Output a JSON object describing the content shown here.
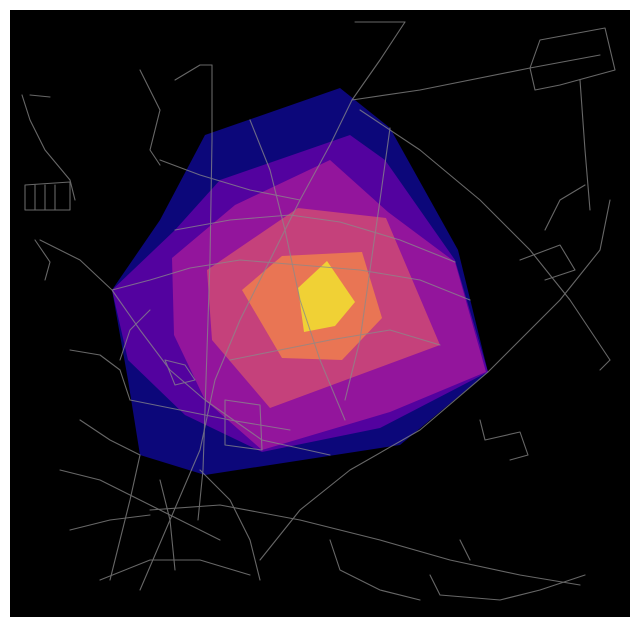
{
  "map": {
    "background_color": "#000000",
    "frame_color": "#ffffff",
    "street_color": "#8a8a8a",
    "isochrones": [
      {
        "id": "band-1",
        "color": "#0d0887",
        "opacity": 0.9
      },
      {
        "id": "band-2",
        "color": "#5b02a3",
        "opacity": 0.9
      },
      {
        "id": "band-3",
        "color": "#9a179b",
        "opacity": 0.9
      },
      {
        "id": "band-4",
        "color": "#cb4678",
        "opacity": 0.9
      },
      {
        "id": "band-5",
        "color": "#eb7852",
        "opacity": 0.95
      },
      {
        "id": "band-6",
        "color": "#f0d634",
        "opacity": 0.95
      }
    ]
  }
}
